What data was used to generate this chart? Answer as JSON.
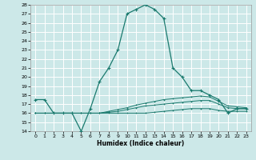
{
  "xlabel": "Humidex (Indice chaleur)",
  "xlim": [
    -0.5,
    23.5
  ],
  "ylim": [
    14,
    28
  ],
  "yticks": [
    14,
    15,
    16,
    17,
    18,
    19,
    20,
    21,
    22,
    23,
    24,
    25,
    26,
    27,
    28
  ],
  "xticks": [
    0,
    1,
    2,
    3,
    4,
    5,
    6,
    7,
    8,
    9,
    10,
    11,
    12,
    13,
    14,
    15,
    16,
    17,
    18,
    19,
    20,
    21,
    22,
    23
  ],
  "bg_color": "#cce8e8",
  "grid_color": "#ffffff",
  "line_color": "#1a7a6e",
  "lines": [
    {
      "x": [
        0,
        1,
        2,
        3,
        4,
        5,
        6,
        7,
        8,
        9,
        10,
        11,
        12,
        13,
        14,
        15,
        16,
        17,
        18,
        19,
        20,
        21,
        22,
        23
      ],
      "y": [
        17.5,
        17.5,
        16.0,
        16.0,
        16.0,
        14.0,
        16.5,
        19.5,
        21.0,
        23.0,
        27.0,
        27.5,
        28.0,
        27.5,
        26.5,
        21.0,
        20.0,
        18.5,
        18.5,
        18.0,
        17.5,
        16.0,
        16.5,
        16.5
      ]
    },
    {
      "x": [
        0,
        1,
        2,
        3,
        4,
        5,
        6,
        7,
        8,
        9,
        10,
        11,
        12,
        13,
        14,
        15,
        16,
        17,
        18,
        19,
        20,
        21,
        22,
        23
      ],
      "y": [
        16.0,
        16.0,
        16.0,
        16.0,
        16.0,
        16.0,
        16.0,
        16.0,
        16.0,
        16.0,
        16.0,
        16.0,
        16.0,
        16.1,
        16.2,
        16.3,
        16.4,
        16.5,
        16.5,
        16.5,
        16.3,
        16.2,
        16.2,
        16.2
      ]
    },
    {
      "x": [
        0,
        1,
        2,
        3,
        4,
        5,
        6,
        7,
        8,
        9,
        10,
        11,
        12,
        13,
        14,
        15,
        16,
        17,
        18,
        19,
        20,
        21,
        22,
        23
      ],
      "y": [
        16.0,
        16.0,
        16.0,
        16.0,
        16.0,
        16.0,
        16.0,
        16.0,
        16.1,
        16.2,
        16.4,
        16.6,
        16.8,
        16.9,
        17.0,
        17.1,
        17.2,
        17.3,
        17.4,
        17.4,
        17.0,
        16.6,
        16.5,
        16.5
      ]
    },
    {
      "x": [
        0,
        1,
        2,
        3,
        4,
        5,
        6,
        7,
        8,
        9,
        10,
        11,
        12,
        13,
        14,
        15,
        16,
        17,
        18,
        19,
        20,
        21,
        22,
        23
      ],
      "y": [
        16.0,
        16.0,
        16.0,
        16.0,
        16.0,
        16.0,
        16.0,
        16.0,
        16.2,
        16.4,
        16.6,
        16.9,
        17.1,
        17.3,
        17.5,
        17.6,
        17.7,
        17.8,
        17.9,
        17.8,
        17.3,
        16.8,
        16.7,
        16.6
      ]
    }
  ]
}
